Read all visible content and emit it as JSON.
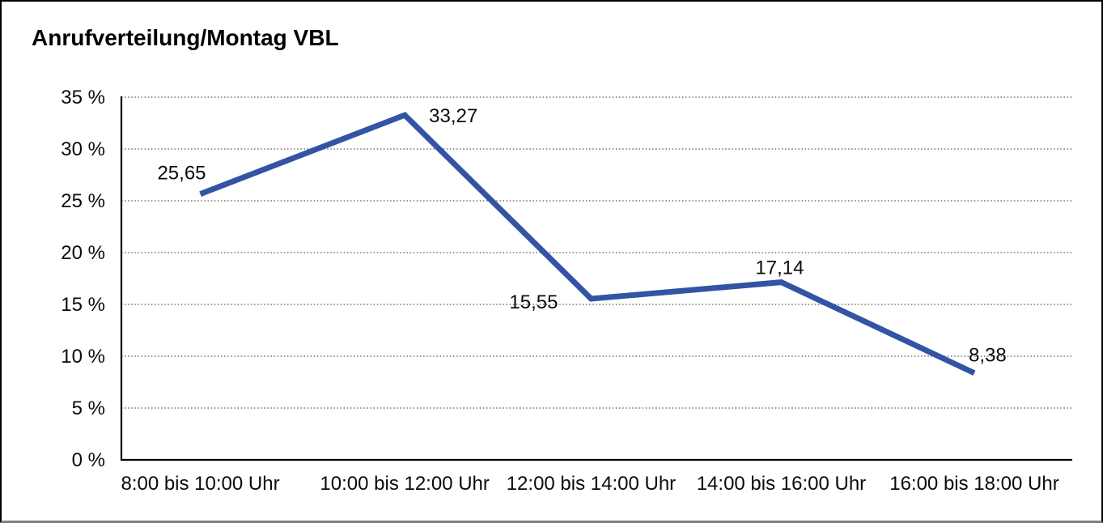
{
  "window": {
    "background": "#ffffff",
    "frame_border_color": "#000000",
    "frame_bottom_border_color": "#7f7f7f"
  },
  "chart_data": {
    "type": "line",
    "title": "Anrufverteilung/Montag VBL",
    "categories": [
      "8:00 bis 10:00 Uhr",
      "10:00 bis 12:00 Uhr",
      "12:00 bis 14:00 Uhr",
      "14:00 bis 16:00 Uhr",
      "16:00 bis 18:00 Uhr"
    ],
    "values": [
      25.65,
      33.27,
      15.55,
      17.14,
      8.38
    ],
    "point_labels": [
      "25,65",
      "33,27",
      "15,55",
      "17,14",
      "8,38"
    ],
    "xlabel": "",
    "ylabel": "",
    "ylim": [
      0,
      35
    ],
    "ytick_step": 5,
    "ytick_labels": [
      "0 %",
      "5 %",
      "10 %",
      "15 %",
      "20 %",
      "25 %",
      "30 %",
      "35 %"
    ],
    "grid": "horizontal-dotted",
    "legend": "none",
    "line_color": "#3354a4",
    "axis_color": "#000000",
    "gridline_color": "#555555",
    "label_color": "#0b0b0b"
  }
}
